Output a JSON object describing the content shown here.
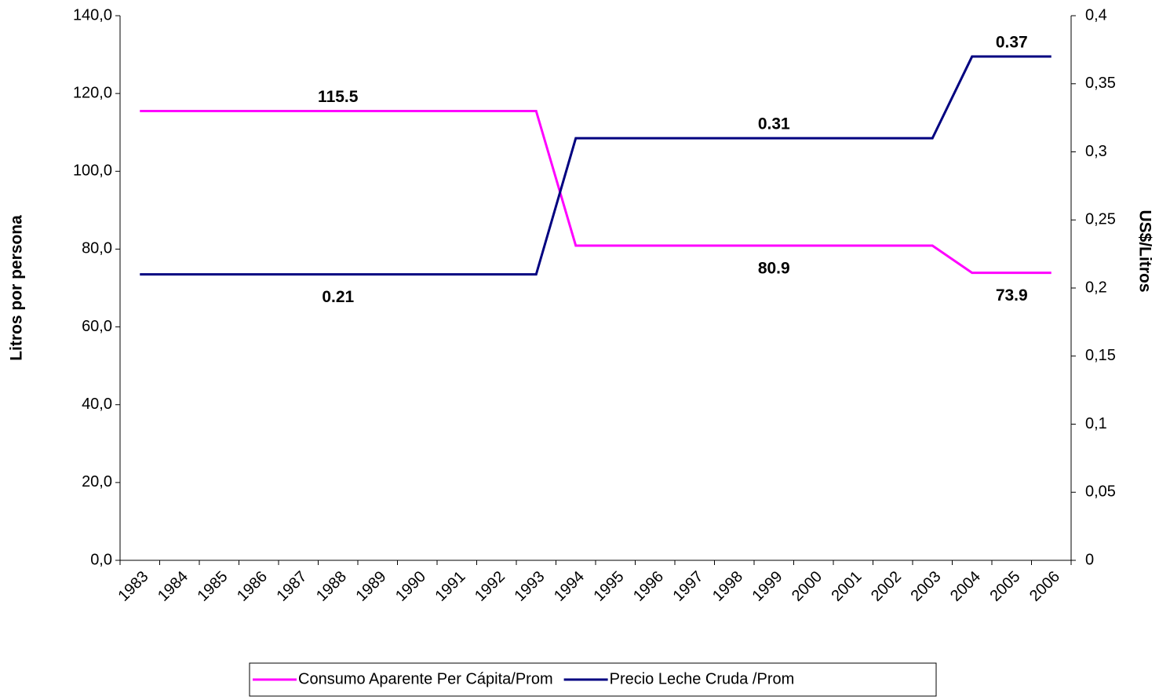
{
  "chart_data": {
    "type": "line",
    "y_label": "Litros por persona",
    "y2_label": "US$/Litros",
    "categories": [
      "1983",
      "1984",
      "1985",
      "1986",
      "1987",
      "1988",
      "1989",
      "1990",
      "1991",
      "1992",
      "1993",
      "1994",
      "1995",
      "1996",
      "1997",
      "1998",
      "1999",
      "2000",
      "2001",
      "2002",
      "2003",
      "2004",
      "2005",
      "2006"
    ],
    "series": [
      {
        "name": "Consumo Aparente Per Cápita/Prom",
        "color": "#ff00ff",
        "values": [
          115.5,
          115.5,
          115.5,
          115.5,
          115.5,
          115.5,
          115.5,
          115.5,
          115.5,
          115.5,
          115.5,
          80.9,
          80.9,
          80.9,
          80.9,
          80.9,
          80.9,
          80.9,
          80.9,
          80.9,
          80.9,
          73.9,
          73.9,
          73.9
        ],
        "value_labels": [
          null,
          null,
          null,
          null,
          null,
          "115.5",
          null,
          null,
          null,
          null,
          null,
          null,
          null,
          null,
          null,
          null,
          "80.9",
          null,
          null,
          null,
          null,
          null,
          "73.9",
          null
        ]
      },
      {
        "name": "Precio Leche Cruda /Prom",
        "color": "#000080",
        "axis": "y2",
        "values": [
          0.21,
          0.21,
          0.21,
          0.21,
          0.21,
          0.21,
          0.21,
          0.21,
          0.21,
          0.21,
          0.21,
          0.31,
          0.31,
          0.31,
          0.31,
          0.31,
          0.31,
          0.31,
          0.31,
          0.31,
          0.31,
          0.37,
          0.37,
          0.37
        ],
        "value_labels": [
          null,
          null,
          null,
          null,
          null,
          "0.21",
          null,
          null,
          null,
          null,
          null,
          null,
          null,
          null,
          null,
          null,
          "0.31",
          null,
          null,
          null,
          null,
          null,
          "0.37",
          null
        ]
      }
    ],
    "ylim": [
      0,
      140
    ],
    "yticks": [
      {
        "value": 0,
        "label": "0,0"
      },
      {
        "value": 20,
        "label": "20,0"
      },
      {
        "value": 40,
        "label": "40,0"
      },
      {
        "value": 60,
        "label": "60,0"
      },
      {
        "value": 80,
        "label": "80,0"
      },
      {
        "value": 100,
        "label": "100,0"
      },
      {
        "value": 120,
        "label": "120,0"
      },
      {
        "value": 140,
        "label": "140,0"
      }
    ],
    "y2lim": [
      0,
      0.4
    ],
    "y2ticks": [
      0,
      {
        "value": 0.05,
        "label": "0,05"
      },
      {
        "value": 0.1,
        "label": "0,1"
      },
      {
        "value": 0.15,
        "label": "0,15"
      },
      {
        "value": 0.2,
        "label": "0,2"
      },
      {
        "value": 0.25,
        "label": "0,25"
      },
      {
        "value": 0.3,
        "label": "0,3"
      },
      {
        "value": 0.35,
        "label": "0,35"
      },
      {
        "value": 0.4,
        "label": "0,4"
      }
    ],
    "grid": false,
    "legend": "bottom"
  }
}
